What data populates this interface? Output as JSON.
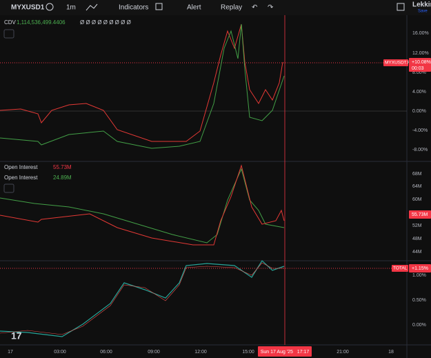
{
  "toolbar": {
    "symbol": "MYXUSD1",
    "interval": "1m",
    "indicators": "Indicators",
    "alert": "Alert",
    "replay": "Replay",
    "user": "Lekkim",
    "save": "Save"
  },
  "pane1": {
    "legend": {
      "name": "CDV",
      "value": "1,114,536,499.4406",
      "extra": "Ø Ø Ø Ø Ø Ø Ø Ø Ø"
    },
    "axis": [
      "16.00%",
      "12.00%",
      "8.00%",
      "4.00%",
      "0.00%",
      "-4.00%",
      "-8.00%"
    ],
    "badge": {
      "name": "MYXUSDT.P",
      "value": "+10.08%",
      "time": "00:03"
    }
  },
  "pane2": {
    "legends": [
      {
        "name": "Open Interest",
        "value": "55.73M"
      },
      {
        "name": "Open Interest",
        "value": "24.89M"
      }
    ],
    "axis": [
      "68M",
      "64M",
      "60M",
      "52M",
      "48M",
      "44M"
    ],
    "badge": "55.73M"
  },
  "pane3": {
    "axis": [
      "1.00%",
      "0.50%",
      "0.00%"
    ],
    "badge": {
      "name": "TOTAL",
      "value": "+1.15%"
    }
  },
  "time_axis": {
    "labels": [
      "17",
      "03:00",
      "06:00",
      "09:00",
      "12:00",
      "15:00",
      "21:00",
      "18"
    ],
    "cursor": "Sun 17 Aug '25   17:17"
  }
}
